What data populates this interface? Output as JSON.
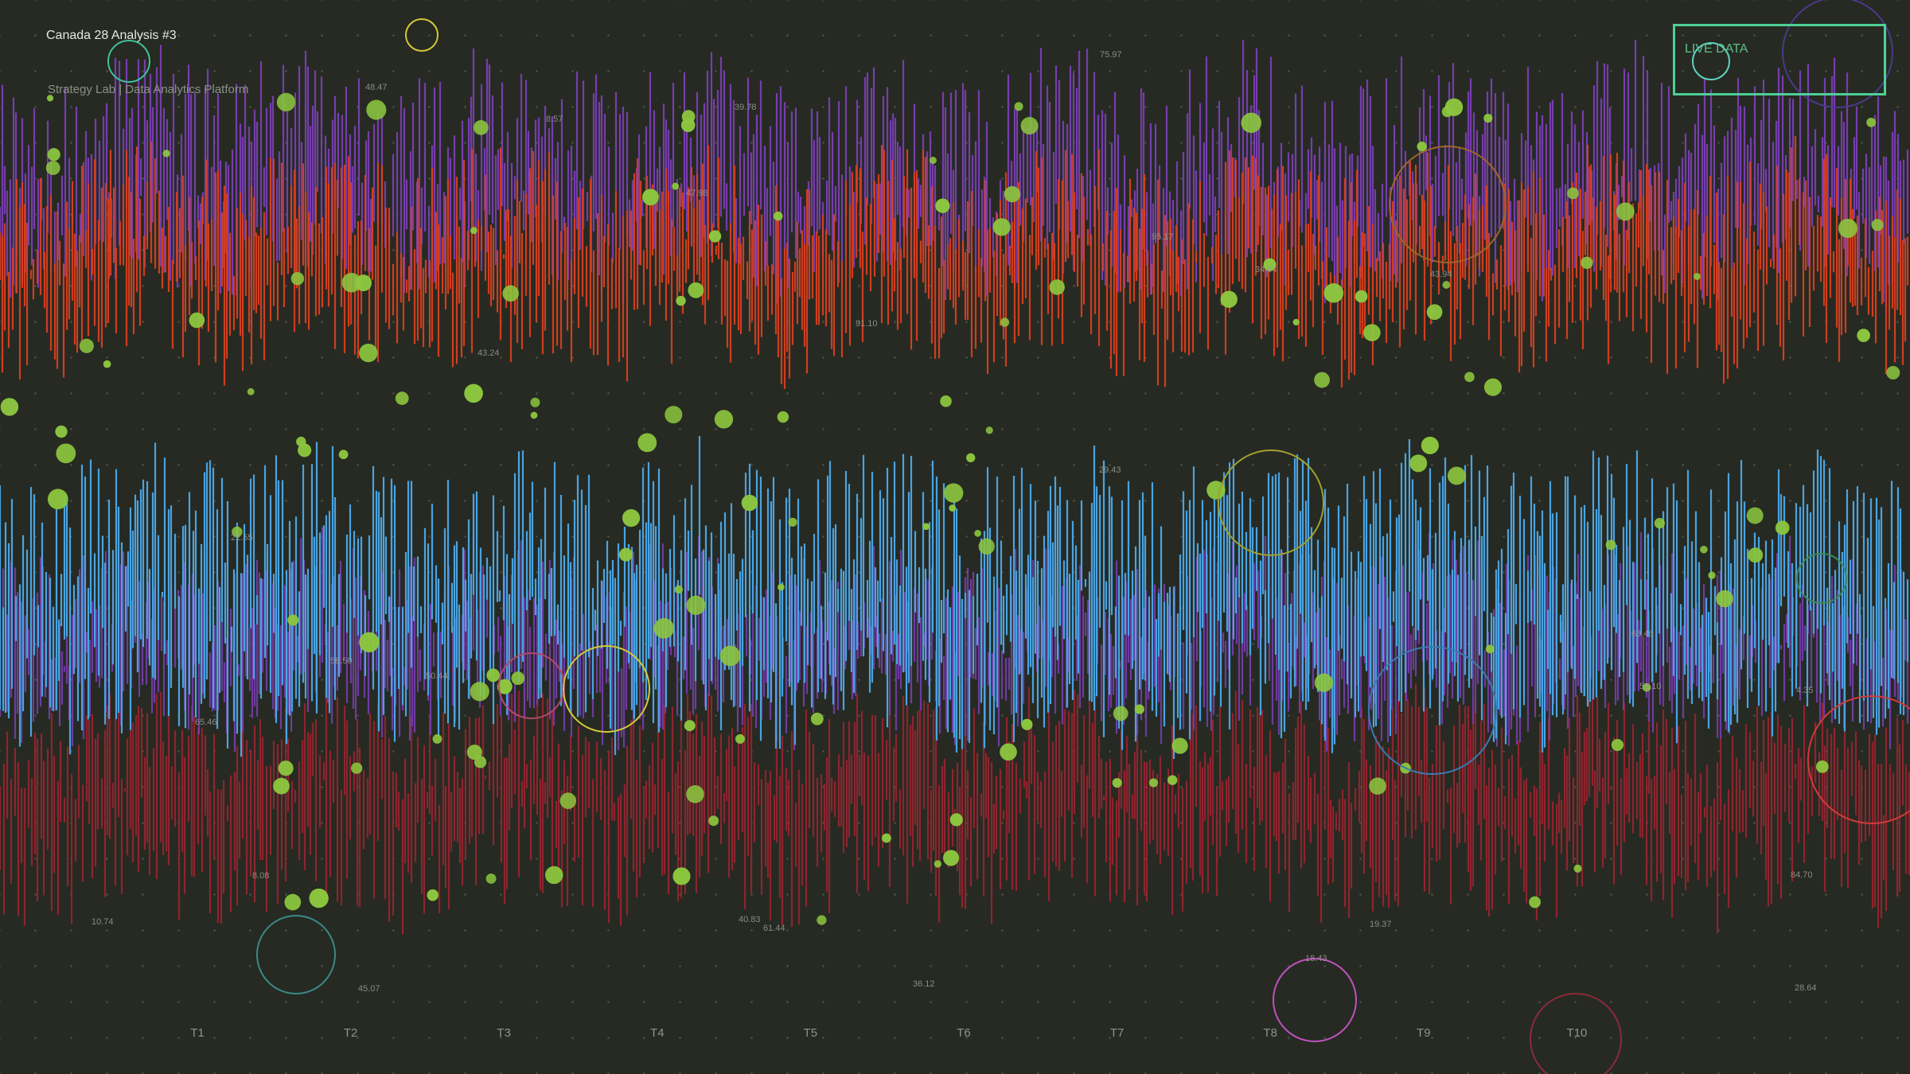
{
  "header": {
    "title": "Canada 28 Analysis #3",
    "subtitle": "Strategy Lab | Data Analytics Platform"
  },
  "badge": {
    "label": "LIVE DATA",
    "color": "#4fcf96"
  },
  "colors": {
    "background": "#262a22",
    "purple": "#7b3fb5",
    "orange_red": "#d8401f",
    "blue": "#4aa3e0",
    "dark_red": "#9a2430",
    "green_dots": "#8cc63f"
  },
  "chart_data": {
    "type": "line",
    "categories": [
      "T1",
      "T2",
      "T3",
      "T4",
      "T5",
      "T6",
      "T7",
      "T8",
      "T9",
      "T10"
    ],
    "grid": true,
    "legend": "none",
    "annotations": [
      "48.47",
      "8.57",
      "39.78",
      "75.97",
      "47.98",
      "95.17",
      "34.64",
      "43.94",
      "91.10",
      "43.24",
      "29.43",
      "22.55",
      "58.50",
      "50.44",
      "65.46",
      "8.08",
      "10.74",
      "40.83",
      "61.44",
      "45.07",
      "36.12",
      "19.37",
      "18.43",
      "84.70",
      "28.64",
      "51.10",
      "63.46",
      "4.35"
    ]
  }
}
